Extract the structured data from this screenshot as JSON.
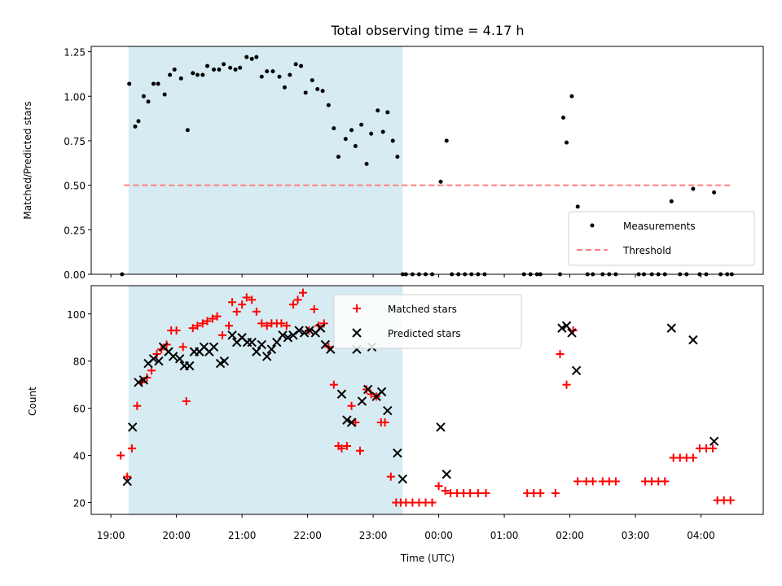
{
  "chart_data": [
    {
      "type": "scatter",
      "title": "Total observing time = 4.17 h",
      "ylabel": "Matched/Predicted stars",
      "ylim": [
        0,
        1.28
      ],
      "yticks": [
        "0.00",
        "0.25",
        "0.50",
        "0.75",
        "1.00",
        "1.25"
      ],
      "ytick_values": [
        0,
        0.25,
        0.5,
        0.75,
        1.0,
        1.25
      ],
      "legend": {
        "position": "lower right",
        "items": [
          "Measurements",
          "Threshold"
        ]
      },
      "threshold": 0.5,
      "colors": {
        "measurement": "#000000",
        "threshold": "#ff7f7f",
        "shade": "#add8e6"
      },
      "series": [
        {
          "name": "Measurements",
          "x": [
            19.17,
            19.28,
            19.37,
            19.42,
            19.5,
            19.57,
            19.65,
            19.72,
            19.82,
            19.9,
            19.97,
            20.07,
            20.17,
            20.25,
            20.32,
            20.4,
            20.47,
            20.57,
            20.65,
            20.72,
            20.82,
            20.9,
            20.97,
            21.07,
            21.15,
            21.22,
            21.3,
            21.38,
            21.47,
            21.57,
            21.65,
            21.73,
            21.82,
            21.9,
            21.97,
            22.07,
            22.15,
            22.23,
            22.32,
            22.4,
            22.47,
            22.58,
            22.67,
            22.73,
            22.82,
            22.9,
            22.97,
            23.07,
            23.15,
            23.22,
            23.3,
            23.37,
            23.45,
            23.5,
            23.6,
            23.7,
            23.8,
            23.9,
            24.03,
            24.12,
            24.2,
            24.3,
            24.4,
            24.5,
            24.6,
            24.7,
            25.3,
            25.4,
            25.5,
            25.55,
            25.85,
            25.9,
            25.95,
            26.03,
            26.12,
            26.27,
            26.35,
            26.5,
            26.6,
            26.7,
            27.05,
            27.13,
            27.25,
            27.35,
            27.45,
            27.55,
            27.68,
            27.78,
            27.88,
            27.98,
            28.08,
            28.2,
            28.3,
            28.4,
            28.47
          ],
          "y": [
            0,
            1.07,
            0.83,
            0.86,
            1.0,
            0.97,
            1.07,
            1.07,
            1.01,
            1.12,
            1.15,
            1.1,
            0.81,
            1.13,
            1.12,
            1.12,
            1.17,
            1.15,
            1.15,
            1.18,
            1.16,
            1.15,
            1.16,
            1.22,
            1.21,
            1.22,
            1.11,
            1.14,
            1.14,
            1.11,
            1.05,
            1.12,
            1.18,
            1.17,
            1.02,
            1.09,
            1.04,
            1.03,
            0.95,
            0.82,
            0.66,
            0.76,
            0.81,
            0.72,
            0.84,
            0.62,
            0.79,
            0.92,
            0.8,
            0.91,
            0.75,
            0.66,
            0,
            0,
            0,
            0,
            0,
            0,
            0.52,
            0.75,
            0,
            0,
            0,
            0,
            0,
            0,
            0,
            0,
            0,
            0,
            0,
            0.88,
            0.74,
            1.0,
            0.38,
            0,
            0,
            0,
            0,
            0,
            0,
            0,
            0,
            0,
            0,
            0.41,
            0,
            0,
            0.48,
            0,
            0,
            0.46,
            0,
            0,
            0
          ]
        }
      ],
      "shade": {
        "x_start": 19.27,
        "x_end": 23.45
      }
    },
    {
      "type": "scatter",
      "xlabel": "Time (UTC)",
      "ylabel": "Count",
      "ylim": [
        15,
        112
      ],
      "yticks": [
        "20",
        "40",
        "60",
        "80",
        "100"
      ],
      "ytick_values": [
        20,
        40,
        60,
        80,
        100
      ],
      "xlim": [
        18.7,
        28.95
      ],
      "xticks": [
        "19:00",
        "20:00",
        "21:00",
        "22:00",
        "23:00",
        "00:00",
        "01:00",
        "02:00",
        "03:00",
        "04:00"
      ],
      "xtick_values": [
        19,
        20,
        21,
        22,
        23,
        24,
        25,
        26,
        27,
        28
      ],
      "legend": {
        "position": "upper center",
        "items": [
          "Matched stars",
          "Predicted stars"
        ]
      },
      "colors": {
        "matched": "#ff0000",
        "predicted": "#000000",
        "shade": "#add8e6"
      },
      "series": [
        {
          "name": "Matched stars",
          "x": [
            19.15,
            19.25,
            19.32,
            19.4,
            19.47,
            19.55,
            19.62,
            19.7,
            19.77,
            19.85,
            19.92,
            20.0,
            20.1,
            20.15,
            20.25,
            20.32,
            20.4,
            20.47,
            20.55,
            20.62,
            20.7,
            20.8,
            20.85,
            20.92,
            21.0,
            21.07,
            21.15,
            21.22,
            21.3,
            21.38,
            21.45,
            21.53,
            21.6,
            21.68,
            21.78,
            21.85,
            21.93,
            22.02,
            22.1,
            22.17,
            22.25,
            22.32,
            22.4,
            22.47,
            22.52,
            22.6,
            22.67,
            22.73,
            22.8,
            22.9,
            22.97,
            23.05,
            23.12,
            23.18,
            23.27,
            23.35,
            23.42,
            23.5,
            23.6,
            23.7,
            23.8,
            23.9,
            24.0,
            24.1,
            24.18,
            24.28,
            24.38,
            24.48,
            24.6,
            24.72,
            25.35,
            25.45,
            25.55,
            25.78,
            25.85,
            25.95,
            26.05,
            26.12,
            26.25,
            26.35,
            26.5,
            26.6,
            26.7,
            27.15,
            27.25,
            27.35,
            27.45,
            27.58,
            27.68,
            27.78,
            27.88,
            27.98,
            28.08,
            28.18,
            28.25,
            28.35,
            28.45
          ],
          "y": [
            40,
            31,
            43,
            61,
            71,
            73,
            76,
            83,
            85,
            87,
            93,
            93,
            86,
            63,
            94,
            95,
            96,
            97,
            98,
            99,
            91,
            95,
            105,
            101,
            104,
            107,
            106,
            101,
            96,
            95,
            96,
            96,
            96,
            95,
            104,
            106,
            109,
            93,
            102,
            95,
            96,
            86,
            70,
            44,
            43,
            44,
            61,
            54,
            42,
            68,
            66,
            65,
            54,
            54,
            31,
            20,
            20,
            20,
            20,
            20,
            20,
            20,
            27,
            25,
            24,
            24,
            24,
            24,
            24,
            24,
            24,
            24,
            24,
            24,
            83,
            70,
            93,
            29,
            29,
            29,
            29,
            29,
            29,
            29,
            29,
            29,
            29,
            39,
            39,
            39,
            39,
            43,
            43,
            43,
            21,
            21,
            21
          ]
        },
        {
          "name": "Predicted stars",
          "x": [
            19.25,
            19.33,
            19.42,
            19.5,
            19.57,
            19.65,
            19.73,
            19.8,
            19.88,
            19.95,
            20.05,
            20.12,
            20.2,
            20.27,
            20.35,
            20.42,
            20.5,
            20.57,
            20.67,
            20.73,
            20.85,
            20.92,
            21.0,
            21.08,
            21.15,
            21.22,
            21.3,
            21.38,
            21.45,
            21.53,
            21.62,
            21.7,
            21.78,
            21.87,
            21.95,
            22.03,
            22.12,
            22.2,
            22.27,
            22.35,
            22.52,
            22.6,
            22.67,
            22.75,
            22.83,
            22.92,
            22.98,
            23.05,
            23.13,
            23.22,
            23.37,
            23.45,
            24.03,
            24.12,
            25.88,
            25.95,
            26.03,
            26.1,
            27.55,
            27.88,
            28.2
          ],
          "y": [
            29,
            52,
            71,
            72,
            79,
            81,
            80,
            86,
            84,
            82,
            81,
            78,
            78,
            84,
            84,
            86,
            84,
            86,
            79,
            80,
            91,
            88,
            90,
            88,
            88,
            84,
            87,
            82,
            85,
            88,
            91,
            90,
            91,
            93,
            92,
            93,
            92,
            94,
            87,
            85,
            66,
            55,
            54,
            85,
            63,
            68,
            86,
            65,
            67,
            59,
            41,
            30,
            52,
            32,
            94,
            95,
            92,
            76,
            94,
            89,
            46
          ]
        }
      ],
      "shade": {
        "x_start": 19.27,
        "x_end": 23.45
      }
    }
  ]
}
